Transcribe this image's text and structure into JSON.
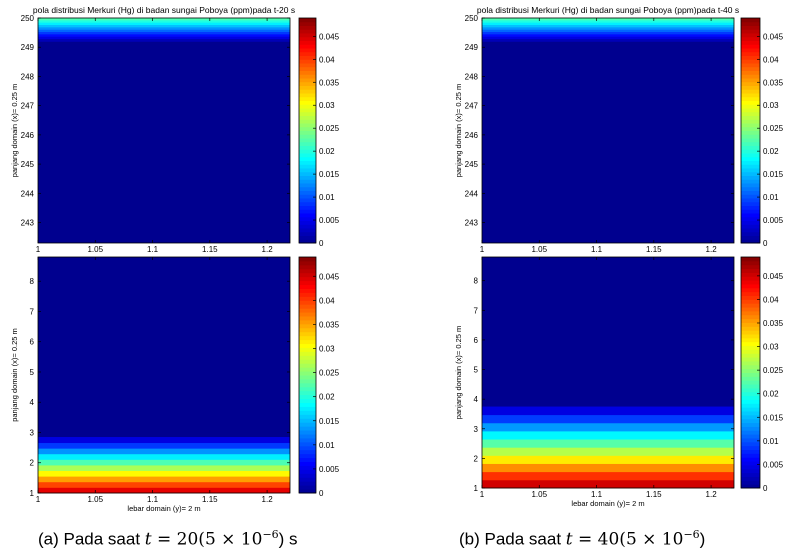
{
  "colorbar_colors": [
    "#00008f",
    "#0000ff",
    "#0080ff",
    "#00ffff",
    "#80ff80",
    "#ffff00",
    "#ff8000",
    "#ff0000",
    "#800000"
  ],
  "panels_common": {
    "ylabel": "panjang domain (x)= 0.25 m",
    "xlabel": "lebar domain (y)= 2 m"
  },
  "captions": {
    "a": {
      "prefix": "(a)   Pada saat ",
      "math": "t",
      "rest": " = 20(5 × 10",
      "exp": "−6",
      "tail": ") s"
    },
    "b": {
      "prefix": "(b)  Pada saat ",
      "math": "t",
      "rest": " = 40(5 × 10",
      "exp": "−6",
      "tail": ")"
    }
  },
  "chart_data": [
    {
      "id": "a-top",
      "type": "heatmap",
      "title": "pola distribusi Merkuri (Hg) di badan sungai Poboya (ppm)pada t-20 s",
      "ylabel": "panjang domain (x)= 0.25 m",
      "xlabel": "",
      "xlim": [
        1,
        1.22
      ],
      "ylim": [
        242.3,
        250
      ],
      "xticks": [
        "1",
        "1.05",
        "1.1",
        "1.15",
        "1.2"
      ],
      "yticks": [
        "243",
        "244",
        "245",
        "246",
        "247",
        "248",
        "249",
        "250"
      ],
      "clim": [
        0,
        0.049
      ],
      "cticks": [
        "0",
        "0.005",
        "0.01",
        "0.015",
        "0.02",
        "0.025",
        "0.03",
        "0.035",
        "0.04",
        "0.045"
      ],
      "gradient_edge": "top",
      "gradient_extent": 0.8,
      "edge_level": 0.45
    },
    {
      "id": "a-bottom",
      "type": "heatmap",
      "title": "",
      "ylabel": "panjang domain (x)= 0.25 m",
      "xlabel": "lebar domain (y)= 2 m",
      "xlim": [
        1,
        1.22
      ],
      "ylim": [
        1,
        8.8
      ],
      "xticks": [
        "1",
        "1.05",
        "1.1",
        "1.15",
        "1.2"
      ],
      "yticks": [
        "1",
        "2",
        "3",
        "4",
        "5",
        "6",
        "7",
        "8"
      ],
      "clim": [
        0,
        0.049
      ],
      "cticks": [
        "0",
        "0.005",
        "0.01",
        "0.015",
        "0.02",
        "0.025",
        "0.03",
        "0.035",
        "0.04",
        "0.045"
      ],
      "gradient_edge": "bottom",
      "gradient_extent": 1.85,
      "edge_level": 0.9
    },
    {
      "id": "b-top",
      "type": "heatmap",
      "title": "pola distribusi Merkuri (Hg) di badan sungai Poboya (ppm)pada t-40 s",
      "ylabel": "panjang domain (x)= 0.25 m",
      "xlabel": "",
      "xlim": [
        1,
        1.22
      ],
      "ylim": [
        242.3,
        250
      ],
      "xticks": [
        "1",
        "1.05",
        "1.1",
        "1.15",
        "1.2"
      ],
      "yticks": [
        "243",
        "244",
        "245",
        "246",
        "247",
        "248",
        "249",
        "250"
      ],
      "clim": [
        0,
        0.049
      ],
      "cticks": [
        "0",
        "0.005",
        "0.01",
        "0.015",
        "0.02",
        "0.025",
        "0.03",
        "0.035",
        "0.04",
        "0.045"
      ],
      "gradient_edge": "top",
      "gradient_extent": 0.8,
      "edge_level": 0.45
    },
    {
      "id": "b-bottom",
      "type": "heatmap",
      "title": "",
      "ylabel": "panjang domain (x)= 0.25 m",
      "xlabel": "lebar domain (y)= 2 m",
      "xlim": [
        1,
        1.22
      ],
      "ylim": [
        1,
        8.8
      ],
      "xticks": [
        "1",
        "1.05",
        "1.1",
        "1.15",
        "1.2"
      ],
      "yticks": [
        "1",
        "2",
        "3",
        "4",
        "5",
        "6",
        "7",
        "8"
      ],
      "clim": [
        0,
        0.049
      ],
      "cticks": [
        "0",
        "0.005",
        "0.01",
        "0.015",
        "0.02",
        "0.025",
        "0.03",
        "0.035",
        "0.04",
        "0.045"
      ],
      "gradient_edge": "bottom",
      "gradient_extent": 2.75,
      "edge_level": 0.92
    }
  ]
}
